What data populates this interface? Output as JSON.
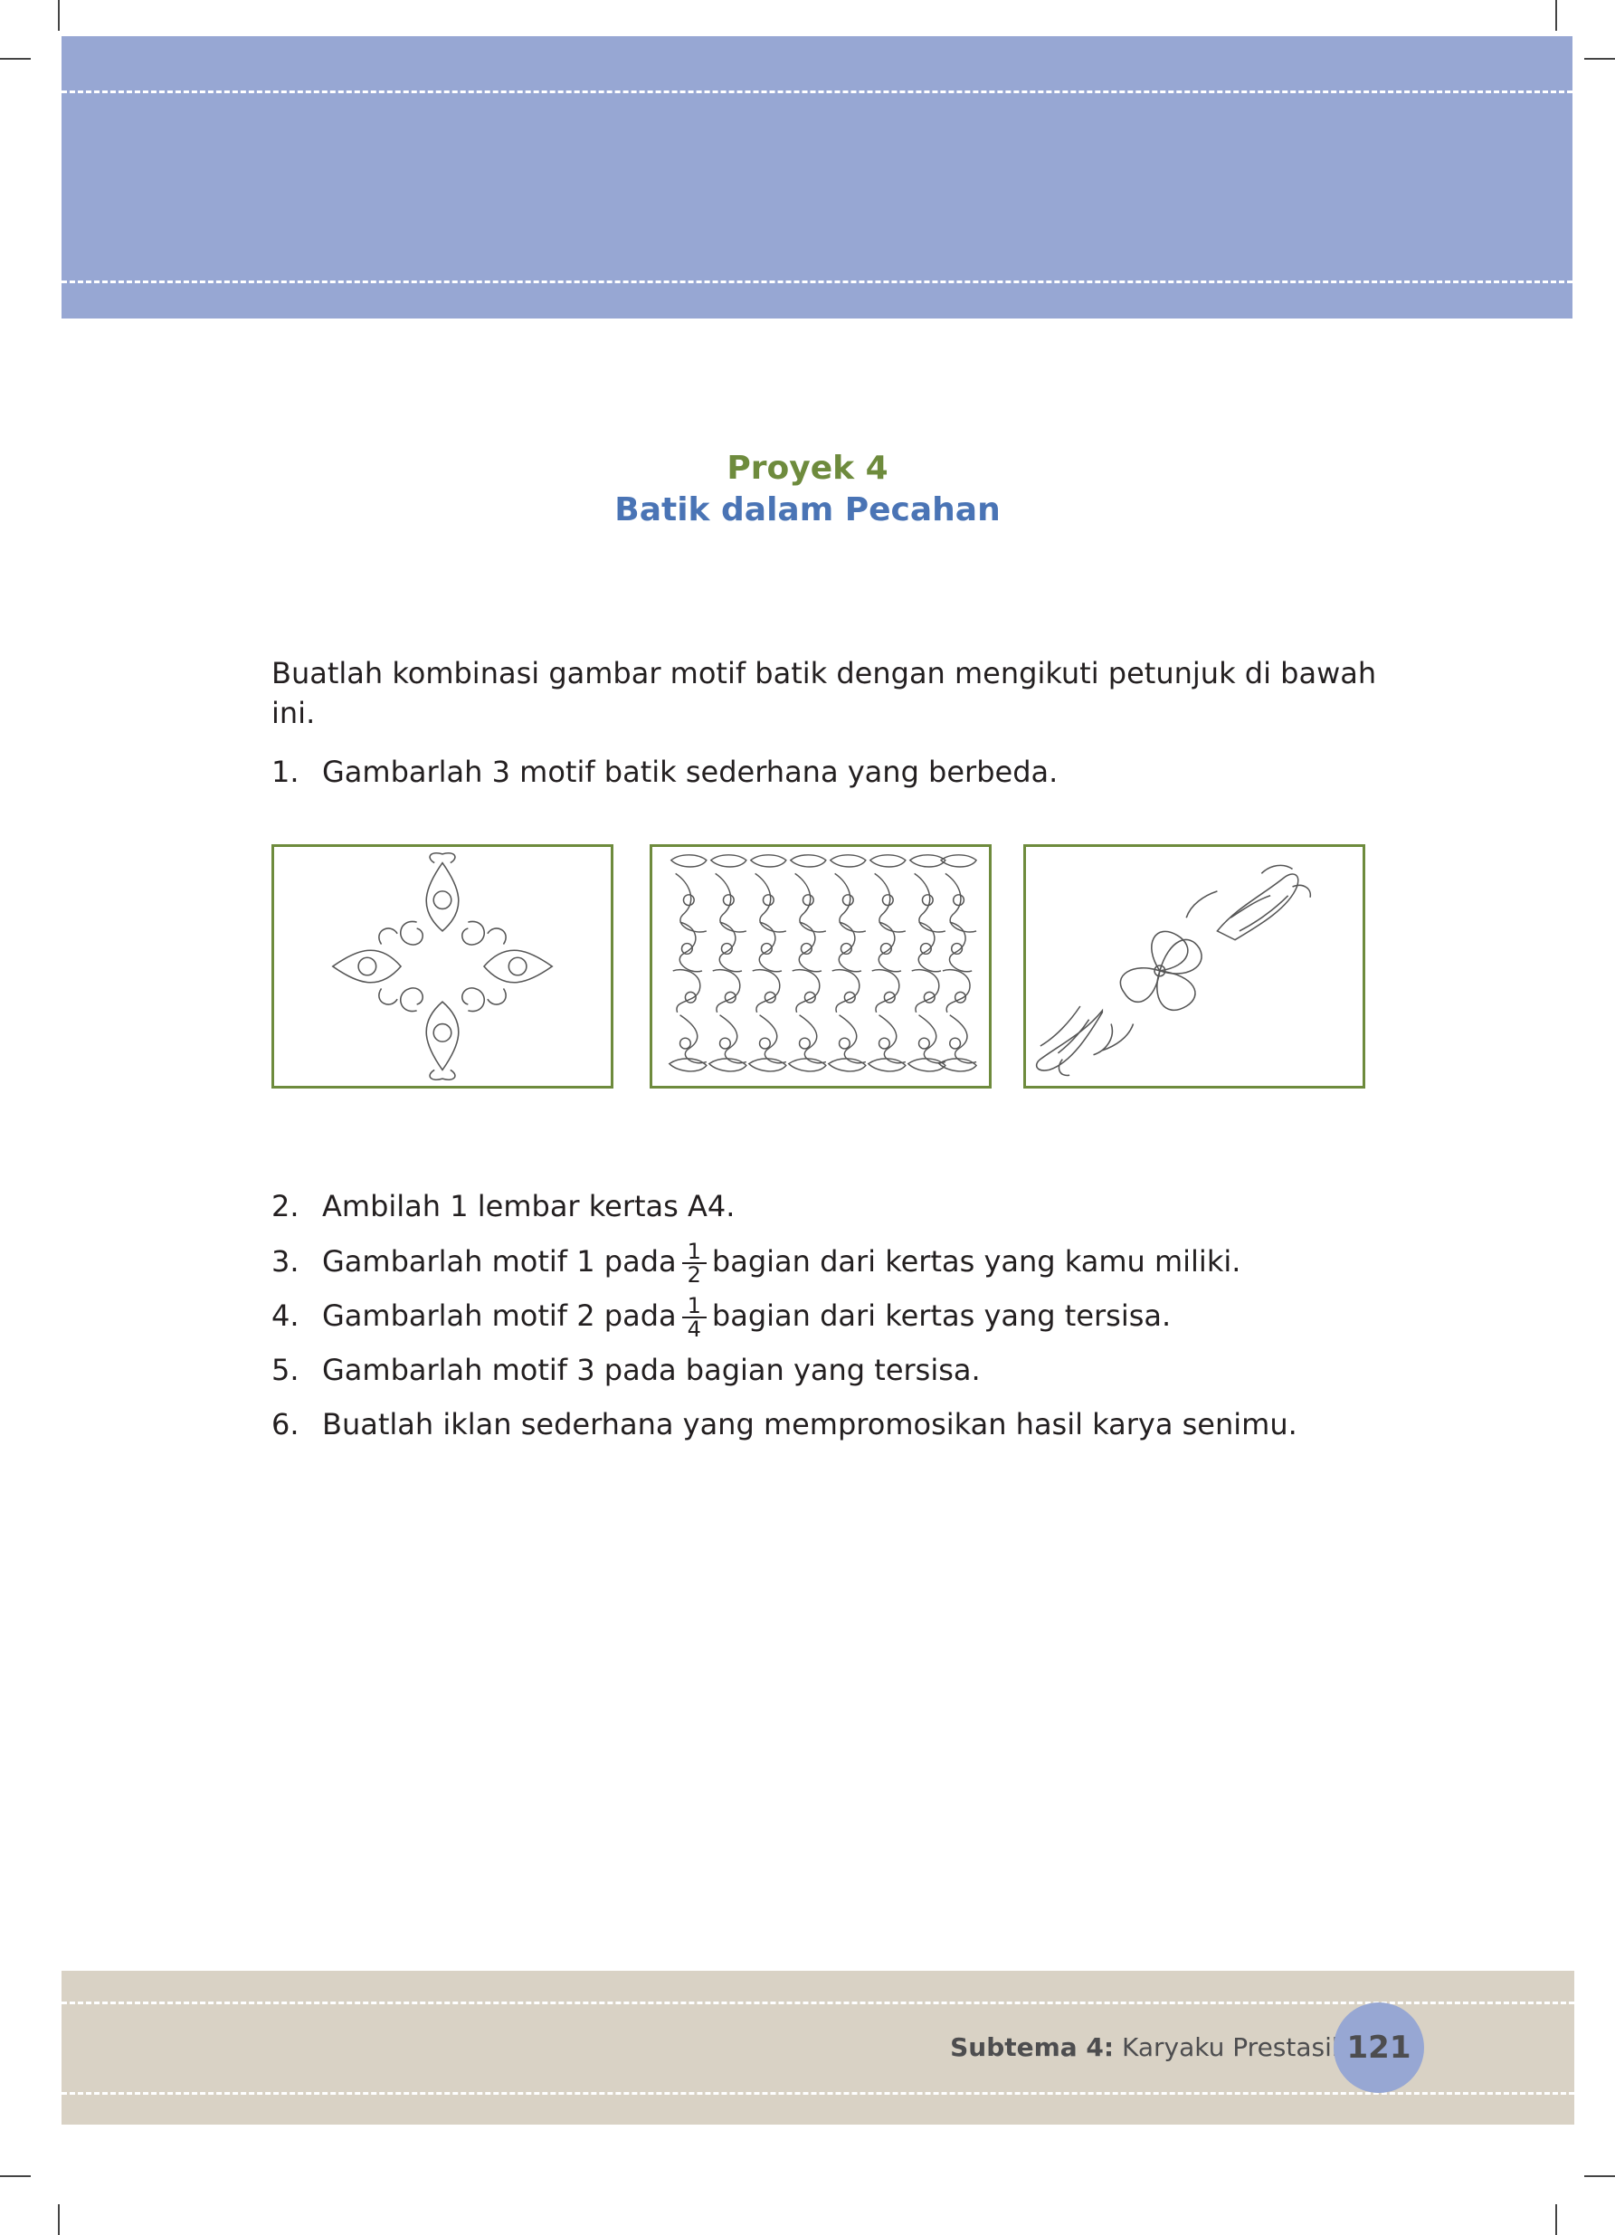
{
  "title": {
    "project_number": "Proyek 4",
    "project_name": "Batik dalam Pecahan"
  },
  "intro": "Buatlah kombinasi gambar motif batik dengan mengikuti petunjuk di bawah ini.",
  "steps": [
    {
      "num": "1.",
      "text": "Gambarlah 3 motif batik sederhana yang berbeda."
    },
    {
      "num": "2.",
      "text": "Ambilah 1 lembar kertas A4."
    },
    {
      "num": "3.",
      "before": "Gambarlah motif 1 pada",
      "frac_num": "1",
      "frac_den": "2",
      "after": "bagian dari kertas yang kamu miliki."
    },
    {
      "num": "4.",
      "before": "Gambarlah motif 2 pada",
      "frac_num": "1",
      "frac_den": "4",
      "after": "bagian dari kertas yang tersisa."
    },
    {
      "num": "5.",
      "text": "Gambarlah motif 3 pada bagian yang tersisa."
    },
    {
      "num": "6.",
      "text": "Buatlah iklan sederhana yang mempromosikan hasil karya senimu."
    }
  ],
  "motifs": [
    {
      "icon": "diamond-floral-motif-icon"
    },
    {
      "icon": "repeating-scroll-motif-icon"
    },
    {
      "icon": "diagonal-floral-motif-icon"
    }
  ],
  "footer": {
    "subtheme_label": "Subtema 4:",
    "subtheme_name": "Karyaku Prestasiku",
    "page_number": "121"
  },
  "colors": {
    "header_band": "#97a7d3",
    "footer_band": "#d9d2c5",
    "title_green": "#6e8b3d",
    "title_blue": "#4a74b5",
    "motif_border": "#6e8b3d"
  }
}
